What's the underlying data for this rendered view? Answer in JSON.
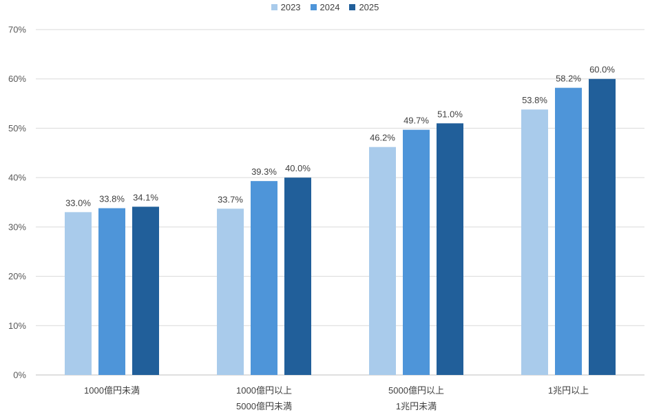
{
  "chart_data": {
    "type": "bar",
    "title": "",
    "xlabel": "",
    "ylabel": "",
    "ylim": [
      0,
      70
    ],
    "yticks": [
      0,
      10,
      20,
      30,
      40,
      50,
      60,
      70
    ],
    "ytick_labels": [
      "0%",
      "10%",
      "20%",
      "30%",
      "40%",
      "50%",
      "60%",
      "70%"
    ],
    "grid": true,
    "legend_position": "top-center",
    "categories": [
      [
        "1000億円未満"
      ],
      [
        "1000億円以上",
        "5000億円未満"
      ],
      [
        "5000億円以上",
        "1兆円未満"
      ],
      [
        "1兆円以上"
      ]
    ],
    "series": [
      {
        "name": "2023",
        "color": "#a9cbeb",
        "values": [
          33.0,
          33.7,
          46.2,
          53.8
        ],
        "labels": [
          "33.0%",
          "33.7%",
          "46.2%",
          "53.8%"
        ]
      },
      {
        "name": "2024",
        "color": "#4e95d9",
        "values": [
          33.8,
          39.3,
          49.7,
          58.2
        ],
        "labels": [
          "33.8%",
          "39.3%",
          "49.7%",
          "58.2%"
        ]
      },
      {
        "name": "2025",
        "color": "#215f9a",
        "values": [
          34.1,
          40.0,
          51.0,
          60.0
        ],
        "labels": [
          "34.1%",
          "40.0%",
          "51.0%",
          "60.0%"
        ]
      }
    ]
  }
}
